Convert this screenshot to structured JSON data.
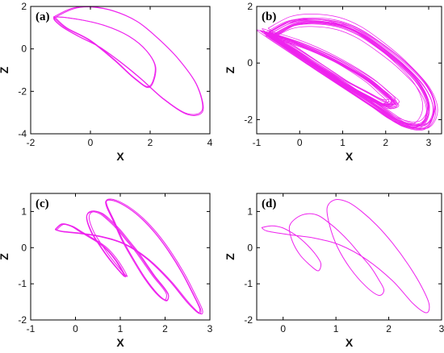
{
  "figure": {
    "panels_note_colors": {
      "curve": "#ee22ee",
      "axes": "#000000"
    }
  },
  "chart_data": [
    {
      "type": "line",
      "panel_label": "(a)",
      "xlabel": "X",
      "ylabel": "Z",
      "xlim": [
        -2,
        4
      ],
      "ylim": [
        -4,
        2
      ],
      "xticks": [
        "-2",
        "0",
        "2",
        "4"
      ],
      "yticks": [
        "-4",
        "-2",
        "0",
        "2"
      ],
      "series": [
        {
          "loops": 2,
          "x": [
            -1.2,
            -0.6,
            0.0,
            0.8,
            1.6,
            2.3,
            3.0,
            3.6,
            3.8,
            3.3,
            2.5,
            1.7,
            1.0,
            0.3,
            -0.4,
            -1.0,
            -1.2,
            -0.4,
            0.5,
            1.3,
            1.9,
            2.2,
            2.0,
            1.5,
            0.8,
            0.0,
            -0.8,
            -1.2
          ],
          "y": [
            1.5,
            1.9,
            2.0,
            1.8,
            1.3,
            0.5,
            -0.5,
            -1.7,
            -2.9,
            -3.1,
            -2.4,
            -1.4,
            -0.6,
            0.1,
            0.6,
            1.1,
            1.5,
            1.4,
            1.1,
            0.6,
            -0.1,
            -0.9,
            -1.8,
            -1.4,
            -0.5,
            0.4,
            1.0,
            1.5
          ]
        }
      ]
    },
    {
      "type": "line",
      "panel_label": "(b)",
      "xlabel": "X",
      "ylabel": "Z",
      "xlim": [
        -1,
        3.3
      ],
      "ylim": [
        -2.5,
        2
      ],
      "xticks": [
        "-1",
        "0",
        "1",
        "2",
        "3"
      ],
      "yticks": [
        "-2",
        "0",
        "2"
      ],
      "series": [
        {
          "loops": 18,
          "x": [
            -0.7,
            -0.2,
            0.3,
            0.9,
            1.4,
            1.9,
            2.4,
            2.9,
            3.1,
            2.9,
            2.4,
            1.9,
            1.4,
            0.9,
            0.4,
            -0.1,
            -0.5,
            -0.8,
            -0.6,
            0.0,
            0.6,
            1.2,
            1.7,
            2.0,
            2.2,
            2.0,
            1.6,
            1.1,
            0.6,
            0.1,
            -0.4,
            -0.7
          ],
          "y": [
            1.0,
            1.4,
            1.5,
            1.4,
            1.1,
            0.6,
            0.0,
            -0.8,
            -1.6,
            -2.2,
            -2.1,
            -1.6,
            -1.1,
            -0.6,
            -0.1,
            0.4,
            0.8,
            1.1,
            1.0,
            0.7,
            0.3,
            -0.2,
            -0.7,
            -1.1,
            -1.4,
            -1.5,
            -1.2,
            -0.8,
            -0.3,
            0.2,
            0.7,
            1.0
          ]
        }
      ]
    },
    {
      "type": "line",
      "panel_label": "(c)",
      "xlabel": "X",
      "ylabel": "Z",
      "xlim": [
        -1,
        3
      ],
      "ylim": [
        -2,
        1.5
      ],
      "xticks": [
        "-1",
        "0",
        "1",
        "2",
        "3"
      ],
      "yticks": [
        "-2",
        "-1",
        "0",
        "1"
      ],
      "series": [
        {
          "loops": 3,
          "x": [
            -0.45,
            -0.3,
            -0.1,
            0.1,
            0.3,
            0.5,
            0.7,
            0.9,
            1.05,
            1.1,
            0.95,
            0.75,
            0.55,
            0.35,
            0.25,
            0.35,
            0.55,
            0.75,
            0.95,
            1.15,
            1.35,
            1.55,
            1.75,
            1.95,
            2.05,
            2.0,
            1.8,
            1.55,
            1.3,
            1.05,
            0.85,
            0.7,
            0.7,
            0.9,
            1.2,
            1.5,
            1.8,
            2.1,
            2.4,
            2.65,
            2.8,
            2.75,
            2.5,
            2.1,
            1.6,
            1.1,
            0.6,
            0.1,
            -0.3,
            -0.45
          ],
          "y": [
            0.5,
            0.65,
            0.6,
            0.45,
            0.3,
            0.15,
            -0.05,
            -0.35,
            -0.65,
            -0.8,
            -0.6,
            -0.3,
            0.05,
            0.45,
            0.85,
            1.0,
            0.95,
            0.75,
            0.5,
            0.2,
            -0.1,
            -0.45,
            -0.8,
            -1.1,
            -1.3,
            -1.45,
            -1.25,
            -0.85,
            -0.35,
            0.2,
            0.75,
            1.15,
            1.32,
            1.3,
            1.1,
            0.8,
            0.4,
            -0.1,
            -0.7,
            -1.3,
            -1.7,
            -1.8,
            -1.5,
            -0.9,
            -0.3,
            0.1,
            0.3,
            0.4,
            0.45,
            0.5
          ]
        }
      ]
    },
    {
      "type": "line",
      "panel_label": "(d)",
      "xlabel": "X",
      "ylabel": "Z",
      "xlim": [
        -0.5,
        3
      ],
      "ylim": [
        -2,
        1.5
      ],
      "xticks": [
        "0",
        "1",
        "2",
        "3"
      ],
      "yticks": [
        "-2",
        "-1",
        "0",
        "1"
      ],
      "series": [
        {
          "loops": 1,
          "x": [
            -0.4,
            -0.2,
            0.0,
            0.2,
            0.35,
            0.5,
            0.65,
            0.75,
            0.7,
            0.55,
            0.35,
            0.2,
            0.15,
            0.3,
            0.5,
            0.7,
            0.9,
            1.1,
            1.3,
            1.5,
            1.7,
            1.85,
            1.95,
            1.85,
            1.6,
            1.3,
            1.05,
            0.9,
            0.85,
            1.0,
            1.25,
            1.5,
            1.8,
            2.1,
            2.4,
            2.65,
            2.8,
            2.75,
            2.5,
            2.1,
            1.6,
            1.1,
            0.6,
            0.1,
            -0.3,
            -0.4
          ],
          "y": [
            0.55,
            0.6,
            0.55,
            0.4,
            0.25,
            0.05,
            -0.2,
            -0.45,
            -0.65,
            -0.5,
            -0.2,
            0.2,
            0.6,
            0.85,
            0.95,
            0.9,
            0.7,
            0.45,
            0.15,
            -0.2,
            -0.55,
            -0.9,
            -1.2,
            -1.35,
            -1.1,
            -0.6,
            0.0,
            0.6,
            1.1,
            1.32,
            1.25,
            1.0,
            0.6,
            0.1,
            -0.5,
            -1.1,
            -1.6,
            -1.85,
            -1.6,
            -0.95,
            -0.35,
            0.05,
            0.25,
            0.35,
            0.45,
            0.55
          ]
        }
      ]
    }
  ]
}
